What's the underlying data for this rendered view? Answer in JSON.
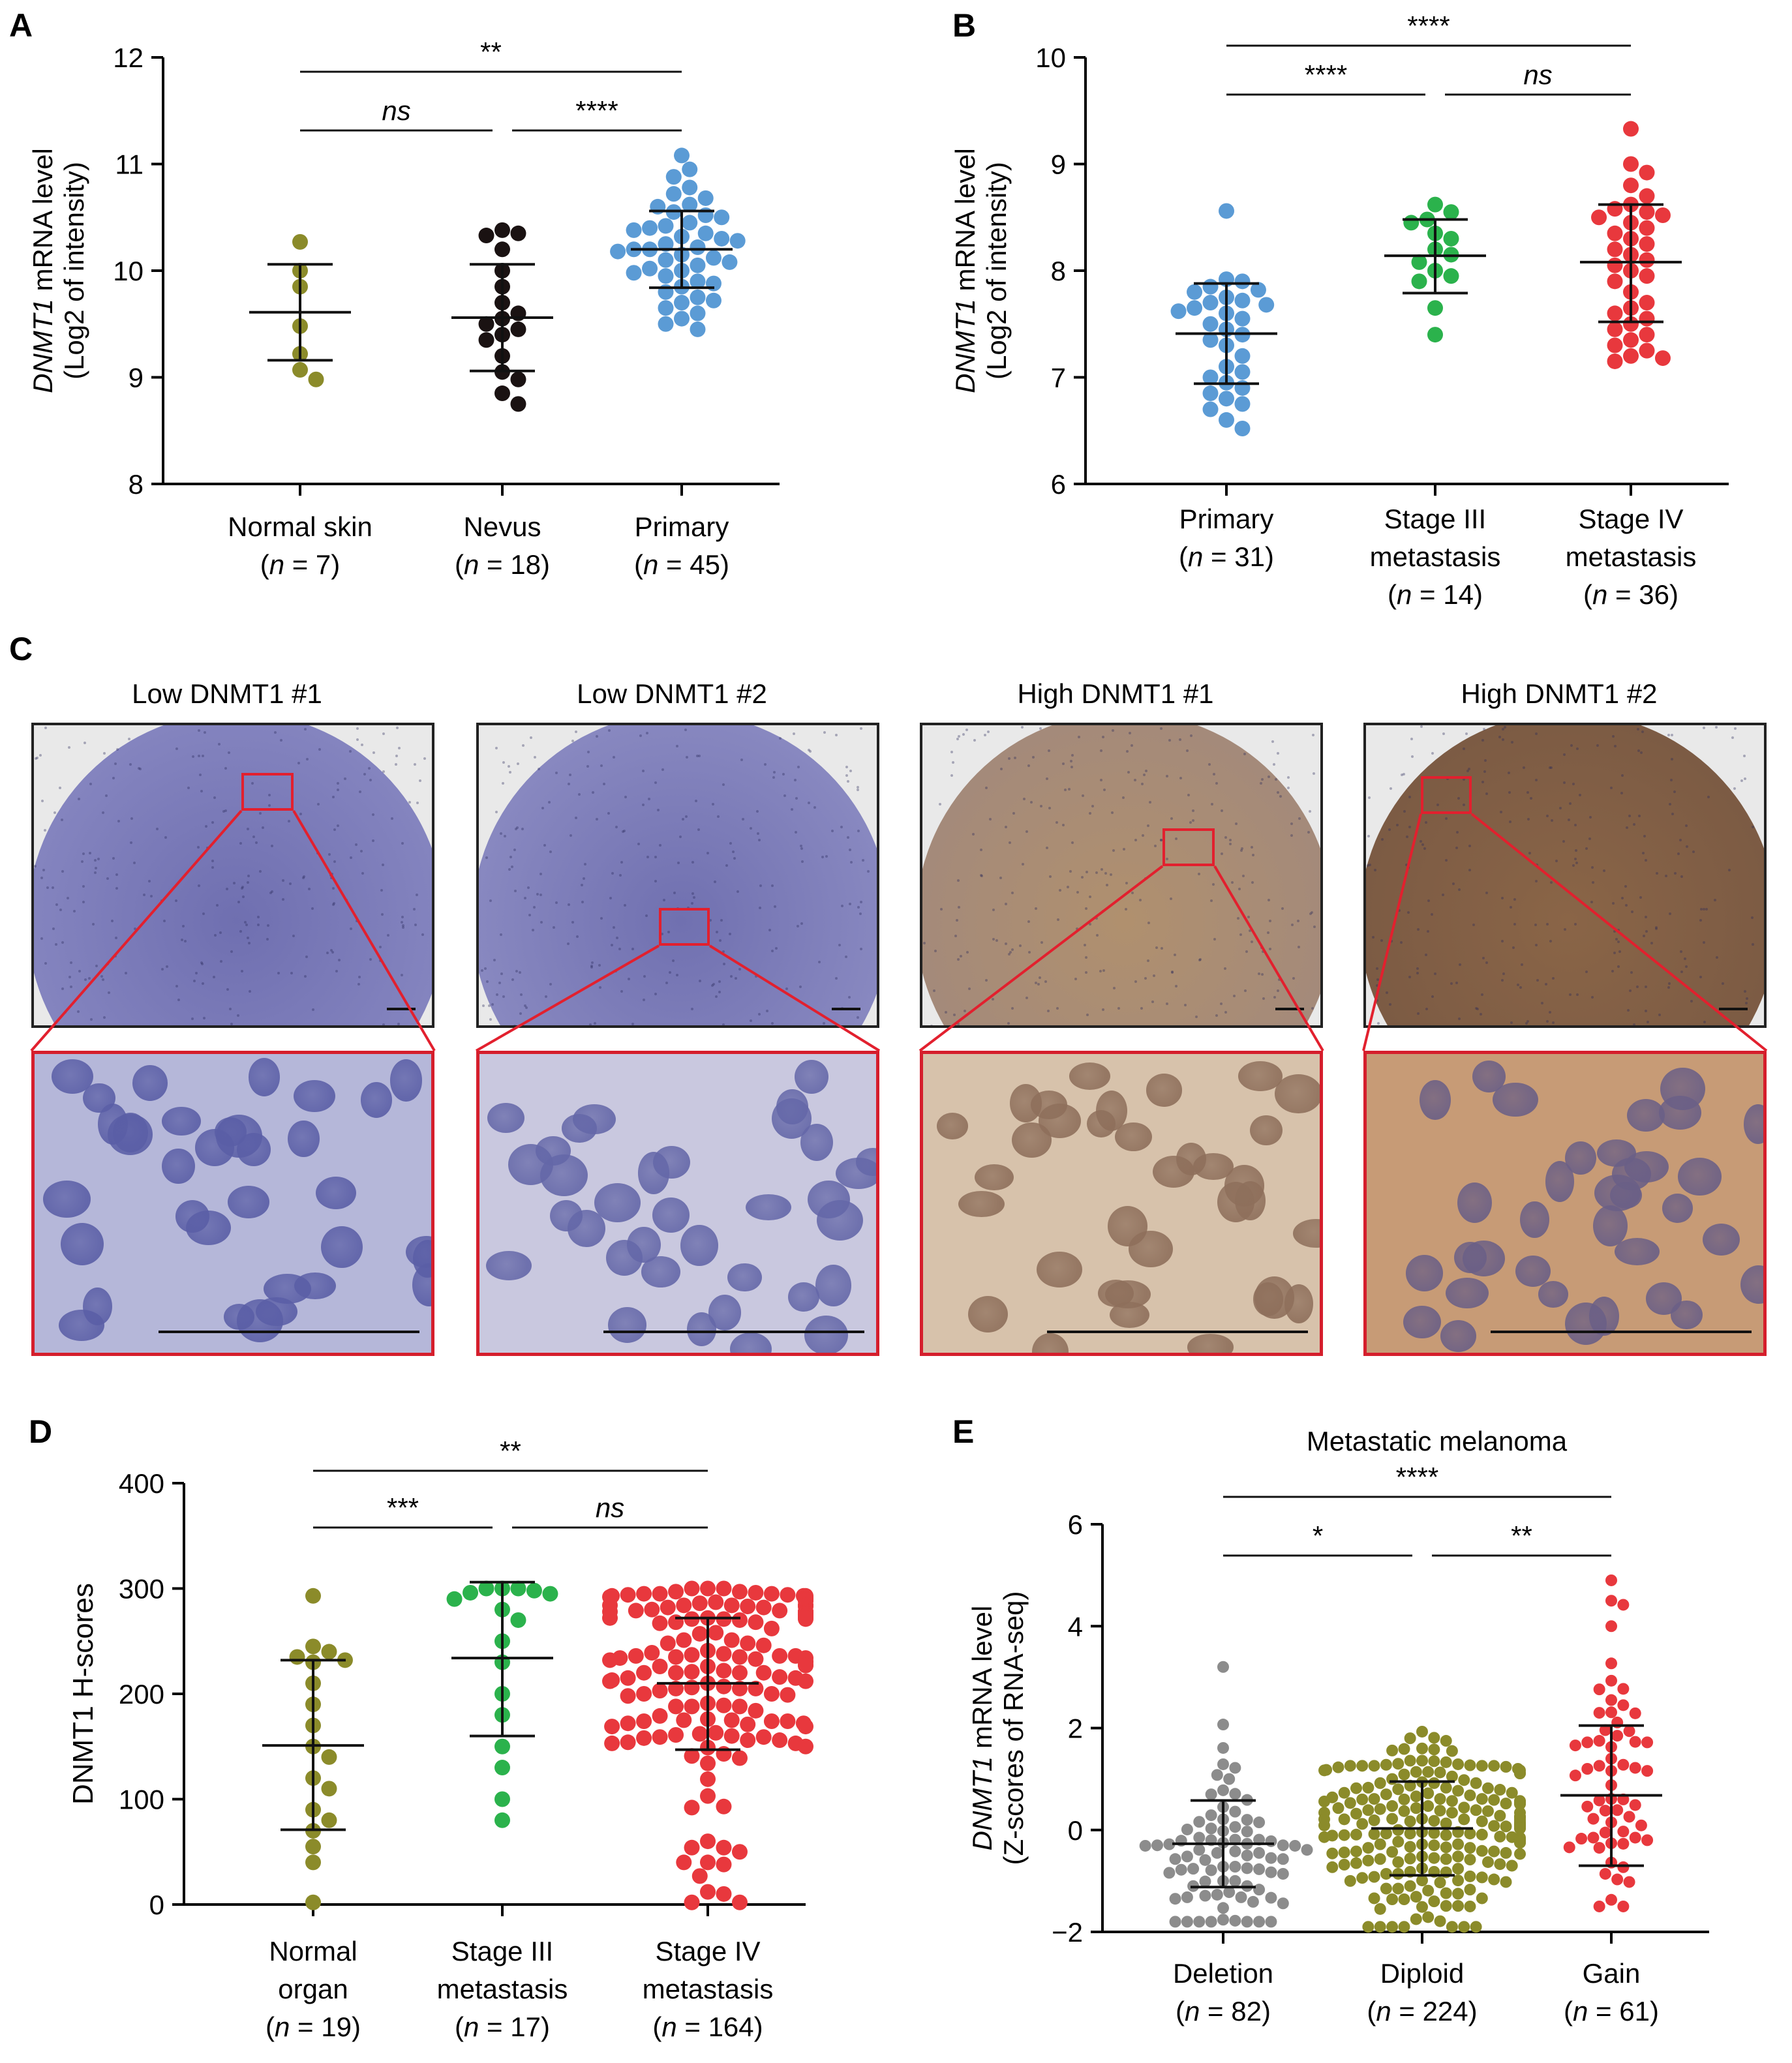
{
  "panels": {
    "A": "A",
    "B": "B",
    "C": "C",
    "D": "D",
    "E": "E"
  },
  "chart_data": [
    {
      "id": "A",
      "type": "scatter",
      "title": "",
      "ylabel_italic": "DNMT1",
      "ylabel_rest": " mRNA level",
      "ylabel2": "(Log2 of intensity)",
      "ylim": [
        8,
        12
      ],
      "yticks": [
        8,
        9,
        10,
        11,
        12
      ],
      "groups": [
        {
          "name": "Normal skin",
          "n_label": "(n = 7)",
          "color": "#8b8b2a",
          "mean": 9.61,
          "sd_upper": 10.06,
          "sd_lower": 9.16,
          "values": [
            10.27,
            10.0,
            9.85,
            9.48,
            9.22,
            9.07,
            8.98
          ]
        },
        {
          "name": "Nevus",
          "n_label": "(n = 18)",
          "color": "#1a1212",
          "mean": 9.56,
          "sd_upper": 10.06,
          "sd_lower": 9.06,
          "values": [
            10.38,
            10.35,
            10.33,
            10.2,
            10.0,
            9.85,
            9.7,
            9.6,
            9.55,
            9.5,
            9.45,
            9.4,
            9.35,
            9.2,
            9.05,
            8.98,
            8.85,
            8.75
          ]
        },
        {
          "name": "Primary",
          "n_label": "(n = 45)",
          "color": "#5b9bd5",
          "mean": 10.2,
          "sd_upper": 10.56,
          "sd_lower": 9.84,
          "values": [
            11.08,
            10.95,
            10.88,
            10.78,
            10.72,
            10.68,
            10.62,
            10.6,
            10.55,
            10.52,
            10.5,
            10.45,
            10.42,
            10.4,
            10.38,
            10.35,
            10.32,
            10.3,
            10.28,
            10.25,
            10.22,
            10.2,
            10.2,
            10.18,
            10.15,
            10.12,
            10.1,
            10.08,
            10.05,
            10.02,
            10.0,
            9.98,
            9.95,
            9.9,
            9.88,
            9.85,
            9.8,
            9.75,
            9.72,
            9.7,
            9.65,
            9.6,
            9.55,
            9.5,
            9.45
          ]
        }
      ],
      "significance": [
        {
          "from": 0,
          "to": 2,
          "label": "**",
          "italic": false,
          "level": 2
        },
        {
          "from": 0,
          "to": 1,
          "label": "ns",
          "italic": true,
          "level": 1
        },
        {
          "from": 1,
          "to": 2,
          "label": "****",
          "italic": false,
          "level": 1
        }
      ]
    },
    {
      "id": "B",
      "type": "scatter",
      "title": "",
      "ylabel_italic": "DNMT1",
      "ylabel_rest": " mRNA level",
      "ylabel2": "(Log2 of intensity)",
      "ylim": [
        6,
        10
      ],
      "yticks": [
        6,
        7,
        8,
        9,
        10
      ],
      "groups": [
        {
          "name": "Primary",
          "name2": "",
          "n_label": "(n = 31)",
          "color": "#5b9bd5",
          "mean": 7.41,
          "sd_upper": 7.88,
          "sd_lower": 6.94,
          "values": [
            8.56,
            7.92,
            7.9,
            7.85,
            7.82,
            7.8,
            7.75,
            7.72,
            7.7,
            7.68,
            7.65,
            7.62,
            7.6,
            7.55,
            7.5,
            7.45,
            7.4,
            7.35,
            7.3,
            7.2,
            7.1,
            7.05,
            7.0,
            6.95,
            6.9,
            6.85,
            6.8,
            6.75,
            6.7,
            6.6,
            6.52
          ]
        },
        {
          "name": "Stage III",
          "name2": "metastasis",
          "n_label": "(n = 14)",
          "color": "#2bb24c",
          "mean": 8.14,
          "sd_upper": 8.48,
          "sd_lower": 7.79,
          "values": [
            8.62,
            8.55,
            8.48,
            8.45,
            8.35,
            8.3,
            8.2,
            8.15,
            8.08,
            8.0,
            7.95,
            7.9,
            7.65,
            7.4
          ]
        },
        {
          "name": "Stage IV",
          "name2": "metastasis",
          "n_label": "(n = 36)",
          "color": "#e8383d",
          "mean": 8.08,
          "sd_upper": 8.62,
          "sd_lower": 7.52,
          "values": [
            9.33,
            9.0,
            8.92,
            8.8,
            8.7,
            8.62,
            8.58,
            8.55,
            8.52,
            8.5,
            8.45,
            8.4,
            8.35,
            8.3,
            8.25,
            8.2,
            8.15,
            8.1,
            8.05,
            8.0,
            7.95,
            7.9,
            7.8,
            7.7,
            7.65,
            7.6,
            7.55,
            7.5,
            7.45,
            7.4,
            7.35,
            7.3,
            7.25,
            7.2,
            7.18,
            7.15
          ]
        }
      ],
      "significance": [
        {
          "from": 0,
          "to": 2,
          "label": "****",
          "italic": false,
          "level": 2
        },
        {
          "from": 0,
          "to": 1,
          "label": "****",
          "italic": false,
          "level": 1
        },
        {
          "from": 1,
          "to": 2,
          "label": "ns",
          "italic": true,
          "level": 1
        }
      ]
    },
    {
      "id": "D",
      "type": "scatter",
      "title": "",
      "ylabel_italic": "",
      "ylabel_rest": "DNMT1 H-scores",
      "ylabel2": "",
      "ylim": [
        0,
        400
      ],
      "yticks": [
        0,
        100,
        200,
        300,
        400
      ],
      "groups": [
        {
          "name": "Normal",
          "name2": "organ",
          "n_label": "(n = 19)",
          "color": "#8b8b2a",
          "mean": 151,
          "sd_upper": 232,
          "sd_lower": 71,
          "values": [
            293,
            245,
            240,
            235,
            232,
            230,
            210,
            190,
            170,
            150,
            140,
            120,
            110,
            90,
            80,
            70,
            55,
            40,
            2
          ]
        },
        {
          "name": "Stage III",
          "name2": "metastasis",
          "n_label": "(n = 17)",
          "color": "#2bb24c",
          "mean": 234,
          "sd_upper": 306,
          "sd_lower": 160,
          "values": [
            300,
            300,
            300,
            298,
            296,
            295,
            290,
            280,
            270,
            250,
            230,
            200,
            180,
            150,
            130,
            100,
            80
          ]
        },
        {
          "name": "Stage IV",
          "name2": "metastasis",
          "n_label": "(n = 164)",
          "color": "#e8383d",
          "mean": 210,
          "sd_upper": 272,
          "sd_lower": 147,
          "values": []
        }
      ],
      "significance": [
        {
          "from": 0,
          "to": 2,
          "label": "**",
          "italic": false,
          "level": 2
        },
        {
          "from": 0,
          "to": 1,
          "label": "***",
          "italic": false,
          "level": 1
        },
        {
          "from": 1,
          "to": 2,
          "label": "ns",
          "italic": true,
          "level": 1
        }
      ]
    },
    {
      "id": "E",
      "type": "scatter",
      "title": "Metastatic melanoma",
      "ylabel_italic": "DNMT1",
      "ylabel_rest": " mRNA level",
      "ylabel2": "(Z-scores of RNA-seq)",
      "ylim": [
        -2,
        6
      ],
      "yticks": [
        -2,
        0,
        2,
        4,
        6
      ],
      "groups": [
        {
          "name": "Deletion",
          "name2": "",
          "n_label": "(n = 82)",
          "color": "#8c8c8c",
          "mean": -0.27,
          "sd_upper": 0.58,
          "sd_lower": -1.12,
          "values": []
        },
        {
          "name": "Diploid",
          "name2": "",
          "n_label": "(n = 224)",
          "color": "#8b8b2a",
          "mean": 0.03,
          "sd_upper": 0.95,
          "sd_lower": -0.89,
          "values": []
        },
        {
          "name": "Gain",
          "name2": "",
          "n_label": "(n = 61)",
          "color": "#e8383d",
          "mean": 0.68,
          "sd_upper": 2.05,
          "sd_lower": -0.7,
          "values": []
        }
      ],
      "significance": [
        {
          "from": 0,
          "to": 2,
          "label": "****",
          "italic": false,
          "level": 2
        },
        {
          "from": 0,
          "to": 1,
          "label": "*",
          "italic": false,
          "level": 1
        },
        {
          "from": 1,
          "to": 2,
          "label": "**",
          "italic": false,
          "level": 1
        }
      ]
    }
  ],
  "panel_c": {
    "titles": [
      "Low DNMT1 #1",
      "Low DNMT1 #2",
      "High DNMT1 #1",
      "High DNMT1 #2"
    ]
  }
}
